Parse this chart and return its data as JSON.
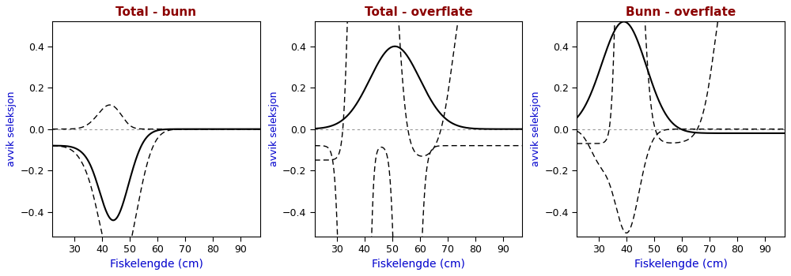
{
  "titles": [
    "Total - bunn",
    "Total - overflate",
    "Bunn - overflate"
  ],
  "xlabel": "Fiskelengde (cm)",
  "ylabel": "avvik seleksjon",
  "xlim": [
    22,
    97
  ],
  "ylim": [
    -0.52,
    0.52
  ],
  "yticks": [
    -0.4,
    -0.2,
    0.0,
    0.2,
    0.4
  ],
  "xticks": [
    30,
    40,
    50,
    60,
    70,
    80,
    90
  ],
  "title_color": "#8B0000",
  "axis_label_color": "#0000CD",
  "tick_color": "#000000",
  "background_color": "#FFFFFF",
  "title_fontsize": 11,
  "label_fontsize": 10,
  "ylabel_fontsize": 9
}
